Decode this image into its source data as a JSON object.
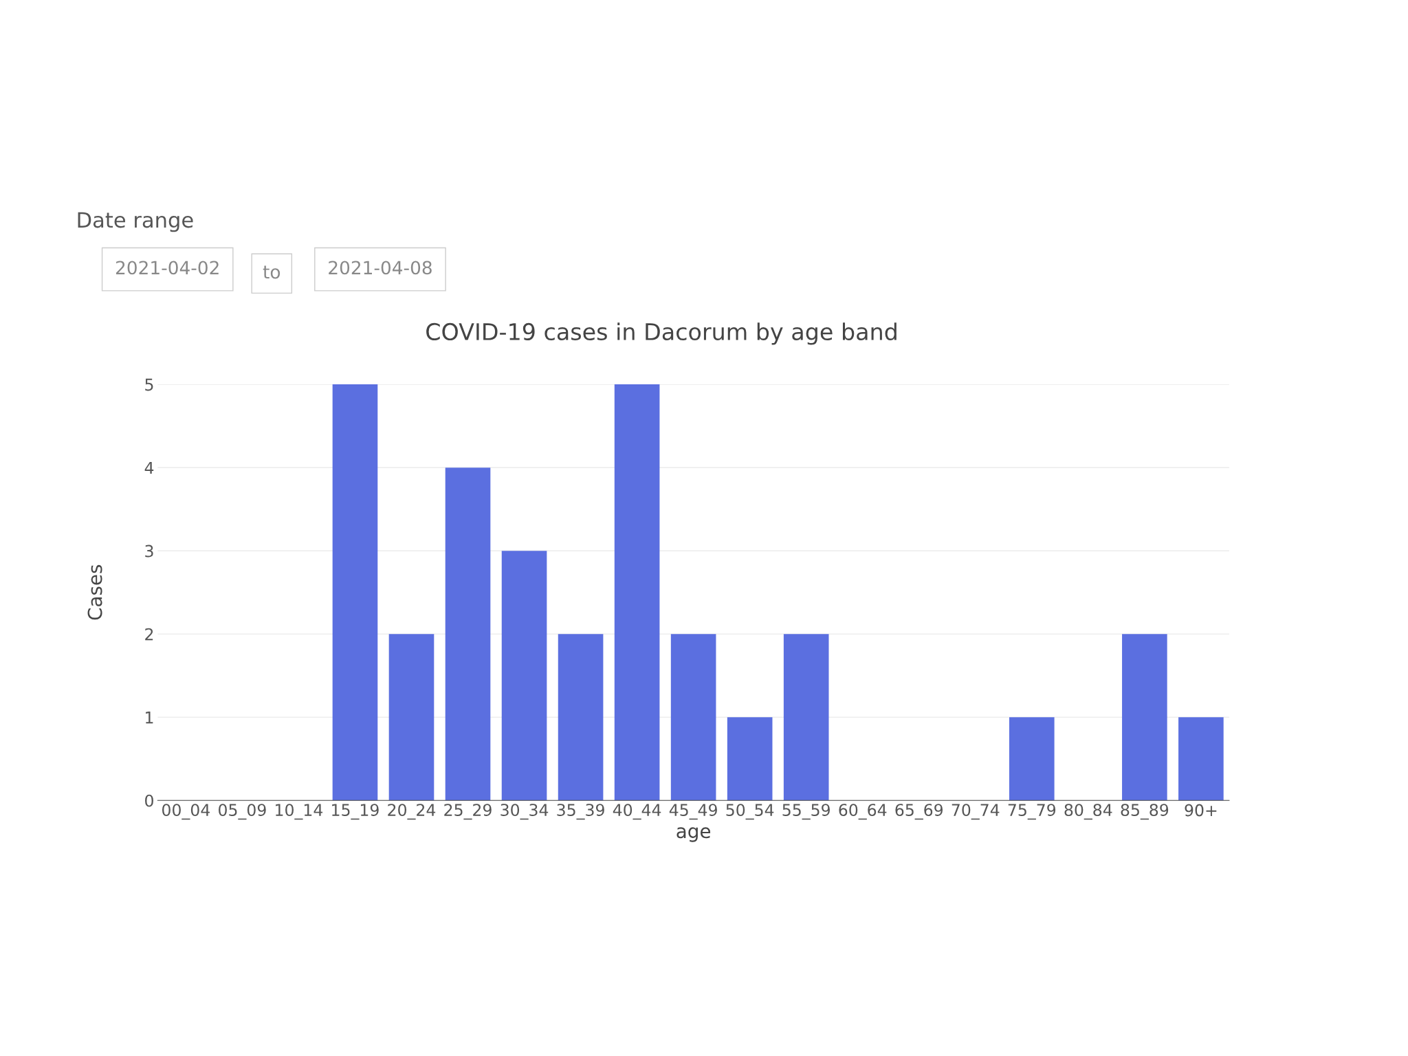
{
  "chart_data": {
    "type": "bar",
    "title": "COVID-19 cases in Dacorum by age band",
    "xlabel": "age",
    "ylabel": "Cases",
    "categories": [
      "00_04",
      "05_09",
      "10_14",
      "15_19",
      "20_24",
      "25_29",
      "30_34",
      "35_39",
      "40_44",
      "45_49",
      "50_54",
      "55_59",
      "60_64",
      "65_69",
      "70_74",
      "75_79",
      "80_84",
      "85_89",
      "90+"
    ],
    "values": [
      0,
      0,
      0,
      5,
      2,
      4,
      3,
      2,
      5,
      2,
      1,
      2,
      0,
      0,
      0,
      1,
      0,
      2,
      1
    ],
    "color": "#5b6fe0",
    "ylim": [
      0,
      5
    ],
    "yticks": [
      0,
      1,
      2,
      3,
      4,
      5
    ],
    "grid": "y",
    "annotations": [
      "Date range",
      "2021-04-02",
      "to",
      "2021-04-08"
    ]
  }
}
